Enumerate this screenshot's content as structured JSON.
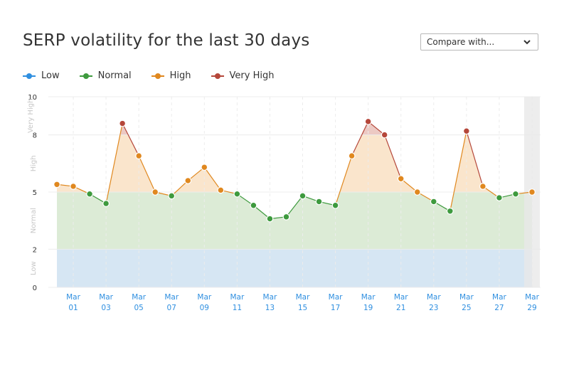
{
  "title": "SERP volatility for the last 30 days",
  "compare": {
    "label": "Compare with...",
    "icon": "chevron-down-icon"
  },
  "legend": [
    {
      "label": "Low",
      "color": "#2f8fe0"
    },
    {
      "label": "Normal",
      "color": "#3e9a3e"
    },
    {
      "label": "High",
      "color": "#e0881f"
    },
    {
      "label": "Very High",
      "color": "#b5473a"
    }
  ],
  "colors": {
    "low_band": "#d6e6f3",
    "normal_band": "#dcebd6",
    "high_band": "#fae5cc",
    "veryhigh_band": "#ecc9c3",
    "line_normal": "#3e9a3e",
    "line_high": "#e0881f",
    "line_veryhigh": "#b5473a",
    "highlight": "#e8e8e8"
  },
  "chart_data": {
    "type": "line",
    "title": "SERP volatility for the last 30 days",
    "ylim": [
      0,
      10
    ],
    "yticks": [
      0,
      2,
      5,
      8,
      10
    ],
    "bands": [
      {
        "label": "Low",
        "from": 0,
        "to": 2
      },
      {
        "label": "Normal",
        "from": 2,
        "to": 5
      },
      {
        "label": "High",
        "from": 5,
        "to": 8
      },
      {
        "label": "Very High",
        "from": 8,
        "to": 10
      }
    ],
    "x": [
      "Feb 28",
      "Mar 01",
      "Mar 02",
      "Mar 03",
      "Mar 04",
      "Mar 05",
      "Mar 06",
      "Mar 07",
      "Mar 08",
      "Mar 09",
      "Mar 10",
      "Mar 11",
      "Mar 12",
      "Mar 13",
      "Mar 14",
      "Mar 15",
      "Mar 16",
      "Mar 17",
      "Mar 18",
      "Mar 19",
      "Mar 20",
      "Mar 21",
      "Mar 22",
      "Mar 23",
      "Mar 24",
      "Mar 25",
      "Mar 26",
      "Mar 27",
      "Mar 28",
      "Mar 29"
    ],
    "values": [
      5.4,
      5.3,
      4.9,
      4.4,
      8.6,
      6.9,
      5.0,
      4.8,
      5.6,
      6.3,
      5.1,
      4.9,
      4.3,
      3.6,
      3.7,
      4.8,
      4.5,
      4.3,
      6.9,
      8.7,
      8.0,
      5.7,
      5.0,
      4.5,
      4.0,
      8.2,
      5.3,
      4.7,
      4.9,
      5.0
    ],
    "xticks": [
      {
        "month": "Mar",
        "day": "01"
      },
      {
        "month": "Mar",
        "day": "03"
      },
      {
        "month": "Mar",
        "day": "05"
      },
      {
        "month": "Mar",
        "day": "07"
      },
      {
        "month": "Mar",
        "day": "09"
      },
      {
        "month": "Mar",
        "day": "11"
      },
      {
        "month": "Mar",
        "day": "13"
      },
      {
        "month": "Mar",
        "day": "15"
      },
      {
        "month": "Mar",
        "day": "17"
      },
      {
        "month": "Mar",
        "day": "19"
      },
      {
        "month": "Mar",
        "day": "21"
      },
      {
        "month": "Mar",
        "day": "23"
      },
      {
        "month": "Mar",
        "day": "25"
      },
      {
        "month": "Mar",
        "day": "27"
      },
      {
        "month": "Mar",
        "day": "29"
      }
    ],
    "band_labels": [
      "Low",
      "Normal",
      "High",
      "Very High"
    ],
    "grid": true,
    "highlighted_last": true
  }
}
